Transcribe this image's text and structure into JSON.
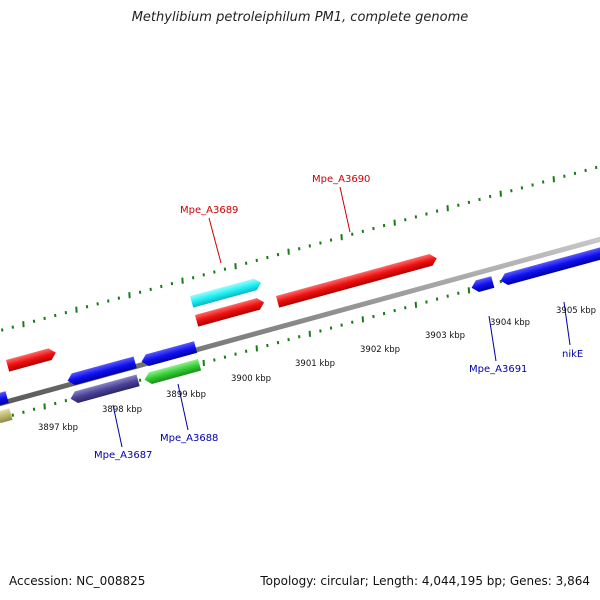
{
  "title": "Methylibium petroleiphilum PM1, complete genome",
  "footer": {
    "accession": "Accession: NC_008825",
    "topology": "Topology: circular; Length: 4,044,195 bp; Genes: 3,864"
  },
  "colors": {
    "backbone": "#8a8a8a",
    "tick": "#1a7a1a",
    "tick_label": "#111111",
    "label_forward": "#cc0000",
    "label_reverse": "#0000aa"
  },
  "kbp_labels": [
    {
      "text": "3897 kbp"
    },
    {
      "text": "3898 kbp"
    },
    {
      "text": "3899 kbp"
    },
    {
      "text": "3900 kbp"
    },
    {
      "text": "3901 kbp"
    },
    {
      "text": "3902 kbp"
    },
    {
      "text": "3903 kbp"
    },
    {
      "text": "3904 kbp"
    },
    {
      "text": "3905 kbp"
    }
  ],
  "gene_labels": [
    {
      "text": "Mpe_A3689",
      "strand": "forward"
    },
    {
      "text": "Mpe_A3690",
      "strand": "forward"
    },
    {
      "text": "Mpe_A3687",
      "strand": "reverse"
    },
    {
      "text": "Mpe_A3688",
      "strand": "reverse"
    },
    {
      "text": "Mpe_A3691",
      "strand": "reverse"
    },
    {
      "text": "nikE",
      "strand": "reverse"
    }
  ]
}
